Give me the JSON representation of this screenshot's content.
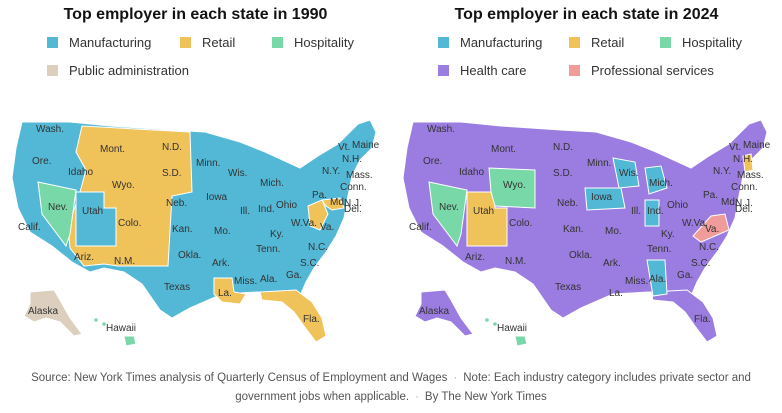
{
  "colors": {
    "manufacturing": "#53b8d6",
    "retail": "#f0c25a",
    "hospitality": "#79d8a8",
    "public_administration": "#dccfbd",
    "health_care": "#9b7ce0",
    "professional_services": "#f29b9b"
  },
  "maps": [
    {
      "title": "Top employer in each state in 1990",
      "legend": [
        {
          "label": "Manufacturing",
          "color": "#53b8d6"
        },
        {
          "label": "Retail",
          "color": "#f0c25a"
        },
        {
          "label": "Hospitality",
          "color": "#79d8a8"
        },
        {
          "label": "Public administration",
          "color": "#dccfbd"
        }
      ],
      "base_color": "#53b8d6",
      "regions": [
        {
          "label": "Mont.",
          "color": "#f0c25a"
        },
        {
          "label": "N.D.",
          "color": "#f0c25a"
        },
        {
          "label": "S.D.",
          "color": "#f0c25a"
        },
        {
          "label": "Idaho",
          "color": "#f0c25a"
        },
        {
          "label": "Wyo.",
          "color": "#f0c25a"
        },
        {
          "label": "Colo.",
          "color": "#f0c25a"
        },
        {
          "label": "Ariz.",
          "color": "#f0c25a"
        },
        {
          "label": "N.M.",
          "color": "#f0c25a"
        },
        {
          "label": "Nev.",
          "color": "#79d8a8"
        },
        {
          "label": "Fla.",
          "color": "#f0c25a"
        },
        {
          "label": "La.",
          "color": "#f0c25a"
        },
        {
          "label": "Md.",
          "color": "#f0c25a"
        },
        {
          "label": "W.Va.",
          "color": "#f0c25a"
        },
        {
          "label": "Alaska",
          "color": "#dccfbd"
        },
        {
          "label": "Hawaii",
          "color": "#79d8a8"
        }
      ],
      "state_labels": [
        "Wash.",
        "Ore.",
        "Calif.",
        "Utah",
        "Minn.",
        "Wis.",
        "Mich.",
        "Iowa",
        "Neb.",
        "Kan.",
        "Okla.",
        "Texas",
        "Mo.",
        "Ark.",
        "Miss.",
        "Ala.",
        "Ga.",
        "Tenn.",
        "Ky.",
        "Ill.",
        "Ind.",
        "Ohio",
        "Pa.",
        "N.Y.",
        "N.C.",
        "S.C.",
        "Va.",
        "Del.",
        "N.J.",
        "Conn.",
        "Mass.",
        "N.H.",
        "Vt.",
        "Maine"
      ]
    },
    {
      "title": "Top employer in each state in 2024",
      "legend": [
        {
          "label": "Manufacturing",
          "color": "#53b8d6"
        },
        {
          "label": "Retail",
          "color": "#f0c25a"
        },
        {
          "label": "Hospitality",
          "color": "#79d8a8"
        },
        {
          "label": "Health care",
          "color": "#9b7ce0"
        },
        {
          "label": "Professional services",
          "color": "#f29b9b"
        }
      ],
      "base_color": "#9b7ce0",
      "regions": [
        {
          "label": "Wyo.",
          "color": "#79d8a8"
        },
        {
          "label": "Nev.",
          "color": "#79d8a8"
        },
        {
          "label": "Utah",
          "color": "#f0c25a"
        },
        {
          "label": "Iowa",
          "color": "#53b8d6"
        },
        {
          "label": "Wis.",
          "color": "#53b8d6"
        },
        {
          "label": "Mich.",
          "color": "#53b8d6"
        },
        {
          "label": "Ind.",
          "color": "#53b8d6"
        },
        {
          "label": "Ala.",
          "color": "#53b8d6"
        },
        {
          "label": "Va.",
          "color": "#f29b9b"
        },
        {
          "label": "N.H.",
          "color": "#f0c25a"
        },
        {
          "label": "Hawaii",
          "color": "#79d8a8"
        }
      ],
      "state_labels": [
        "Wash.",
        "Ore.",
        "Calif.",
        "Idaho",
        "Mont.",
        "N.D.",
        "S.D.",
        "Neb.",
        "Colo.",
        "Kan.",
        "Ariz.",
        "N.M.",
        "Okla.",
        "Texas",
        "Minn.",
        "Mo.",
        "Ark.",
        "La.",
        "Miss.",
        "Ga.",
        "Fla.",
        "Tenn.",
        "Ky.",
        "Ill.",
        "Ohio",
        "Pa.",
        "N.Y.",
        "N.C.",
        "S.C.",
        "Md.",
        "W.Va.",
        "Del.",
        "N.J.",
        "Conn.",
        "Mass.",
        "Vt.",
        "Maine",
        "Alaska"
      ]
    }
  ],
  "footer": {
    "source": "Source: New York Times analysis of Quarterly Census of Employment and Wages",
    "note": "Note: Each industry category includes private sector and government jobs when applicable.",
    "credit": "By The New York Times"
  }
}
